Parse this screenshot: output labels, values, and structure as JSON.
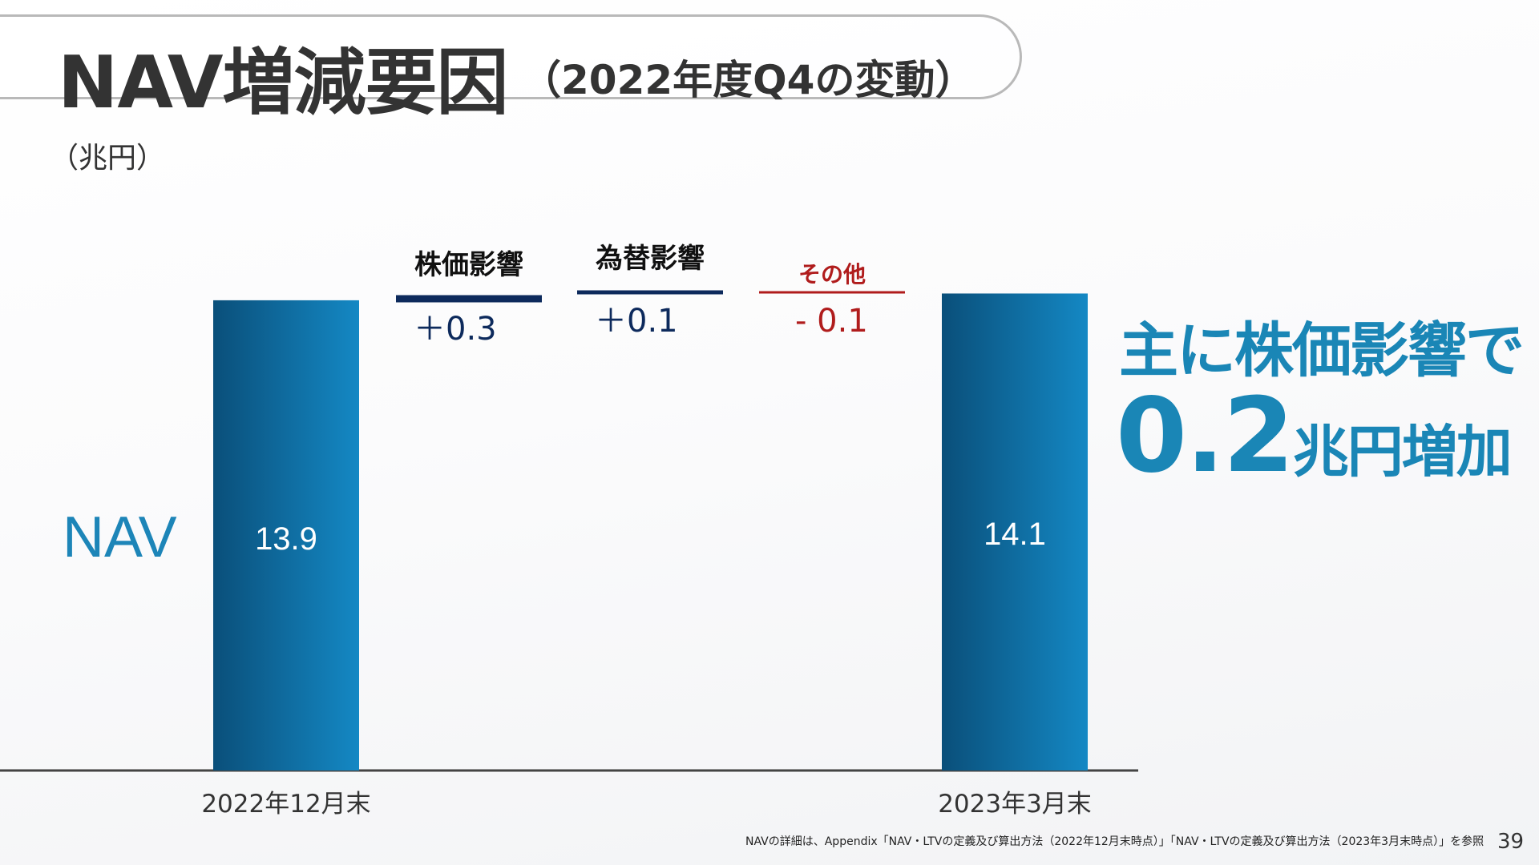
{
  "slide": {
    "title": "NAV増減要因",
    "subtitle": "（2022年度Q4の変動）",
    "unit": "（兆円）",
    "nav_label": "NAV",
    "message_line1": "主に株価影響で",
    "message_value": "0.2",
    "message_suffix": "兆円増加",
    "footnote": "NAVの詳細は、Appendix「NAV・LTVの定義及び算出方法（2022年12月末時点）」「NAV・LTVの定義及び算出方法（2023年3月末時点）」を参照",
    "page_number": "39"
  },
  "colors": {
    "accent": "#1a86b6",
    "navy": "#0d2a5c",
    "red": "#b01c1c",
    "bar_dark": "#0a4f7a",
    "bar_light": "#1488c4"
  },
  "chart_data": {
    "type": "bar",
    "title": "NAV増減要因",
    "ylabel": "（兆円）",
    "ylim": [
      0,
      15.2
    ],
    "grid": false,
    "bars": [
      {
        "category": "2022年12月末",
        "value": 13.9,
        "label": "13.9"
      },
      {
        "category": "2023年3月末",
        "value": 14.1,
        "label": "14.1"
      }
    ],
    "changes": [
      {
        "name": "株価影響",
        "value": 0.3,
        "label": "＋0.3",
        "color": "#0d2a5c"
      },
      {
        "name": "為替影響",
        "value": 0.1,
        "label": "＋0.1",
        "color": "#0d2a5c"
      },
      {
        "name": "その他",
        "value": -0.1,
        "label": "- 0.1",
        "color": "#b01c1c"
      }
    ]
  }
}
